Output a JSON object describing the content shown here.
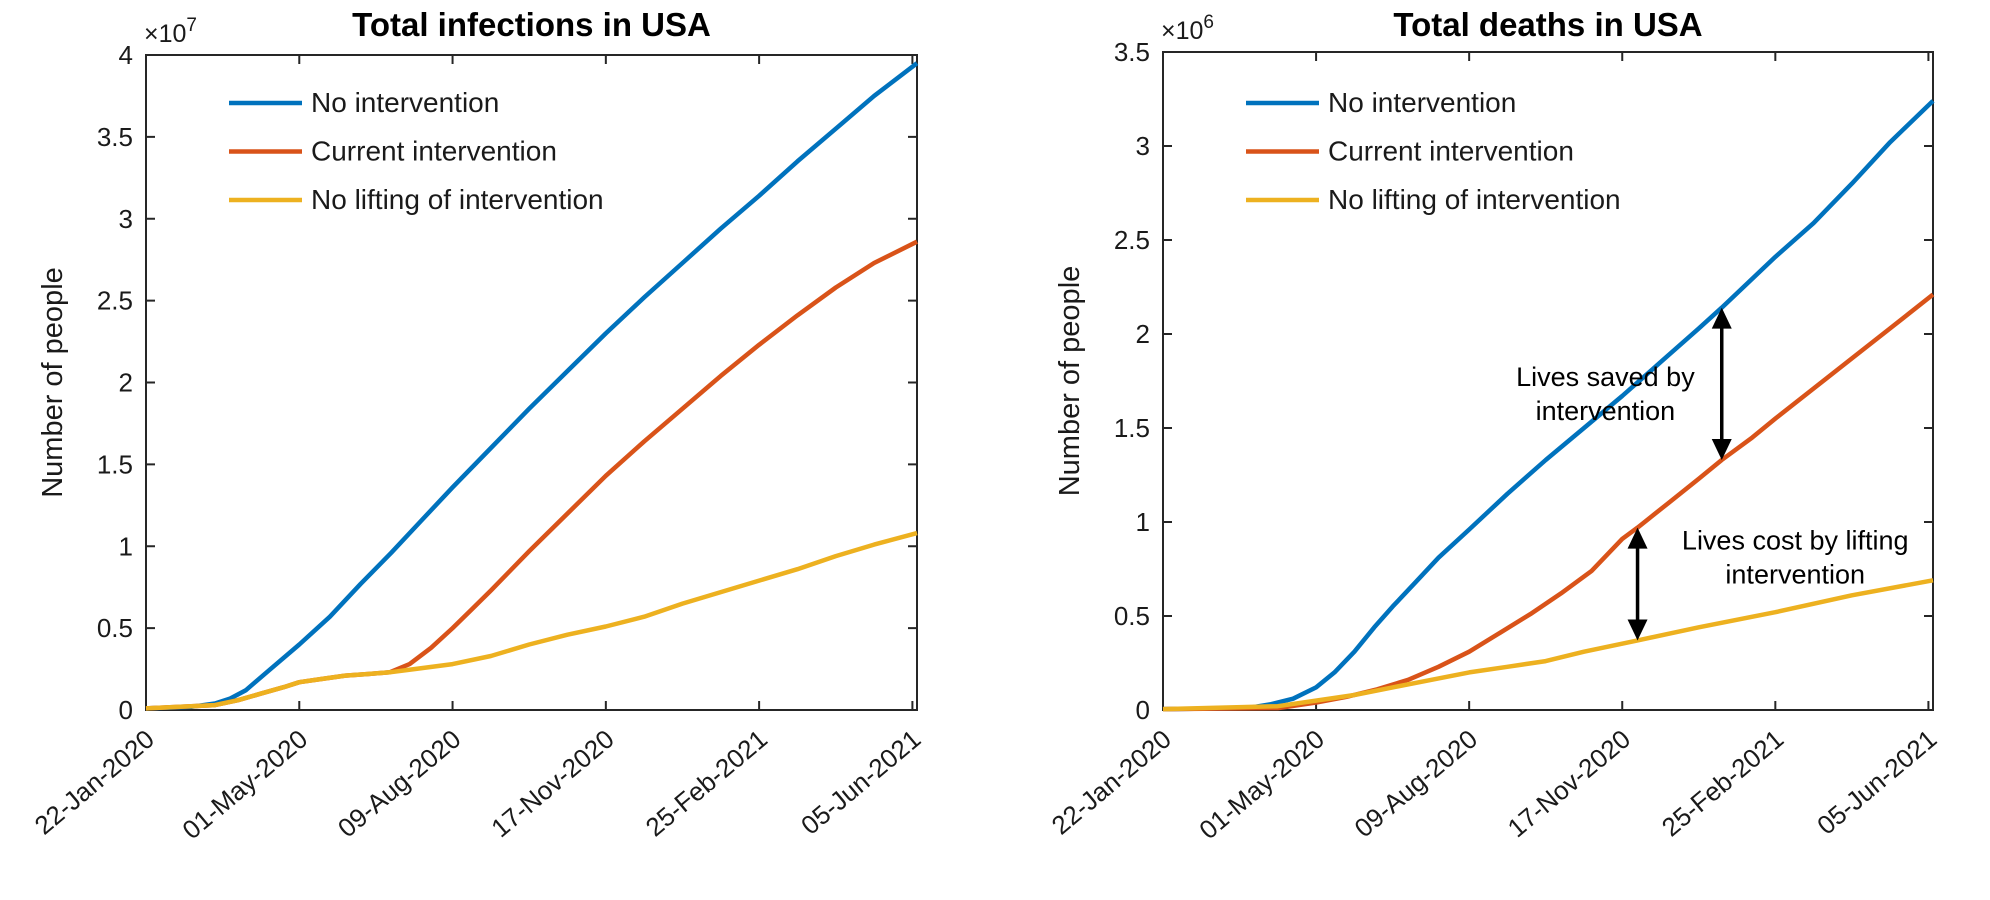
{
  "palette": {
    "series_blue": "#0072BD",
    "series_orange": "#D95319",
    "series_yellow": "#EDB120",
    "axis_color": "#262626",
    "text_color": "#1a1a1a",
    "title_color": "#000000",
    "annotation_color": "#000000",
    "background": "#ffffff"
  },
  "chart_data": [
    {
      "type": "line",
      "title": "Total infections in USA",
      "ylabel": "Number of people",
      "y_exponent": {
        "prefix": "×10",
        "power": "7"
      },
      "y_unit_scale": "1e7",
      "ylim": [
        0,
        4
      ],
      "y_ticks": [
        0,
        0.5,
        1,
        1.5,
        2,
        2.5,
        3,
        3.5,
        4
      ],
      "y_tick_labels": [
        "0",
        "0.5",
        "1",
        "1.5",
        "2",
        "2.5",
        "3",
        "3.5",
        "4"
      ],
      "x_tick_days": [
        0,
        100,
        200,
        300,
        400,
        500
      ],
      "x_tick_labels": [
        "22-Jan-2020",
        "01-May-2020",
        "09-Aug-2020",
        "17-Nov-2020",
        "25-Feb-2021",
        "05-Jun-2021"
      ],
      "x_max_day": 503,
      "grid": false,
      "legend_position": "upper-left-inside",
      "series": [
        {
          "name": "No intervention",
          "color": "#0072BD",
          "points": [
            [
              0,
              0.01
            ],
            [
              30,
              0.02
            ],
            [
              45,
              0.04
            ],
            [
              55,
              0.07
            ],
            [
              65,
              0.12
            ],
            [
              80,
              0.24
            ],
            [
              100,
              0.4
            ],
            [
              120,
              0.57
            ],
            [
              140,
              0.77
            ],
            [
              160,
              0.96
            ],
            [
              180,
              1.16
            ],
            [
              200,
              1.36
            ],
            [
              225,
              1.6
            ],
            [
              250,
              1.84
            ],
            [
              275,
              2.07
            ],
            [
              300,
              2.3
            ],
            [
              325,
              2.52
            ],
            [
              350,
              2.73
            ],
            [
              375,
              2.94
            ],
            [
              400,
              3.14
            ],
            [
              425,
              3.35
            ],
            [
              450,
              3.55
            ],
            [
              475,
              3.75
            ],
            [
              503,
              3.95
            ]
          ]
        },
        {
          "name": "Current intervention",
          "color": "#D95319",
          "points": [
            [
              0,
              0.01
            ],
            [
              45,
              0.03
            ],
            [
              60,
              0.06
            ],
            [
              75,
              0.1
            ],
            [
              90,
              0.14
            ],
            [
              100,
              0.17
            ],
            [
              115,
              0.19
            ],
            [
              130,
              0.21
            ],
            [
              145,
              0.22
            ],
            [
              159,
              0.23
            ],
            [
              172,
              0.28
            ],
            [
              186,
              0.38
            ],
            [
              200,
              0.5
            ],
            [
              212,
              0.61
            ],
            [
              225,
              0.73
            ],
            [
              250,
              0.97
            ],
            [
              275,
              1.2
            ],
            [
              300,
              1.43
            ],
            [
              325,
              1.64
            ],
            [
              350,
              1.84
            ],
            [
              375,
              2.04
            ],
            [
              400,
              2.23
            ],
            [
              425,
              2.41
            ],
            [
              450,
              2.58
            ],
            [
              475,
              2.73
            ],
            [
              503,
              2.86
            ]
          ]
        },
        {
          "name": "No lifting of intervention",
          "color": "#EDB120",
          "points": [
            [
              0,
              0.01
            ],
            [
              45,
              0.03
            ],
            [
              60,
              0.06
            ],
            [
              75,
              0.1
            ],
            [
              90,
              0.14
            ],
            [
              100,
              0.17
            ],
            [
              115,
              0.19
            ],
            [
              130,
              0.21
            ],
            [
              145,
              0.22
            ],
            [
              159,
              0.23
            ],
            [
              175,
              0.25
            ],
            [
              200,
              0.28
            ],
            [
              225,
              0.33
            ],
            [
              250,
              0.4
            ],
            [
              275,
              0.46
            ],
            [
              300,
              0.51
            ],
            [
              325,
              0.57
            ],
            [
              350,
              0.65
            ],
            [
              375,
              0.72
            ],
            [
              400,
              0.79
            ],
            [
              425,
              0.86
            ],
            [
              450,
              0.94
            ],
            [
              475,
              1.01
            ],
            [
              503,
              1.08
            ]
          ]
        }
      ],
      "annotations": []
    },
    {
      "type": "line",
      "title": "Total deaths in USA",
      "ylabel": "Number of people",
      "y_exponent": {
        "prefix": "×10",
        "power": "6"
      },
      "y_unit_scale": "1e6",
      "ylim": [
        0,
        3.5
      ],
      "y_ticks": [
        0,
        0.5,
        1,
        1.5,
        2,
        2.5,
        3,
        3.5
      ],
      "y_tick_labels": [
        "0",
        "0.5",
        "1",
        "1.5",
        "2",
        "2.5",
        "3",
        "3.5"
      ],
      "x_tick_days": [
        0,
        100,
        200,
        300,
        400,
        500
      ],
      "x_tick_labels": [
        "22-Jan-2020",
        "01-May-2020",
        "09-Aug-2020",
        "17-Nov-2020",
        "25-Feb-2021",
        "05-Jun-2021"
      ],
      "x_max_day": 503,
      "grid": false,
      "legend_position": "upper-left-inside",
      "series": [
        {
          "name": "No intervention",
          "color": "#0072BD",
          "points": [
            [
              0,
              0.005
            ],
            [
              55,
              0.01
            ],
            [
              70,
              0.03
            ],
            [
              85,
              0.06
            ],
            [
              100,
              0.12
            ],
            [
              112,
              0.2
            ],
            [
              125,
              0.31
            ],
            [
              138,
              0.44
            ],
            [
              150,
              0.55
            ],
            [
              165,
              0.68
            ],
            [
              180,
              0.81
            ],
            [
              200,
              0.96
            ],
            [
              225,
              1.15
            ],
            [
              250,
              1.33
            ],
            [
              275,
              1.5
            ],
            [
              300,
              1.67
            ],
            [
              325,
              1.85
            ],
            [
              350,
              2.03
            ],
            [
              365,
              2.14
            ],
            [
              400,
              2.41
            ],
            [
              425,
              2.59
            ],
            [
              450,
              2.8
            ],
            [
              475,
              3.02
            ],
            [
              503,
              3.24
            ]
          ]
        },
        {
          "name": "Current intervention",
          "color": "#D95319",
          "points": [
            [
              0,
              0.005
            ],
            [
              75,
              0.01
            ],
            [
              100,
              0.04
            ],
            [
              120,
              0.07
            ],
            [
              140,
              0.11
            ],
            [
              160,
              0.16
            ],
            [
              180,
              0.23
            ],
            [
              200,
              0.31
            ],
            [
              220,
              0.41
            ],
            [
              240,
              0.51
            ],
            [
              260,
              0.62
            ],
            [
              280,
              0.74
            ],
            [
              300,
              0.91
            ],
            [
              310,
              0.97
            ],
            [
              330,
              1.1
            ],
            [
              350,
              1.23
            ],
            [
              365,
              1.33
            ],
            [
              385,
              1.45
            ],
            [
              400,
              1.55
            ],
            [
              425,
              1.71
            ],
            [
              450,
              1.87
            ],
            [
              475,
              2.03
            ],
            [
              503,
              2.21
            ]
          ]
        },
        {
          "name": "No lifting of intervention",
          "color": "#EDB120",
          "points": [
            [
              0,
              0.005
            ],
            [
              75,
              0.02
            ],
            [
              100,
              0.05
            ],
            [
              125,
              0.08
            ],
            [
              150,
              0.12
            ],
            [
              175,
              0.16
            ],
            [
              200,
              0.2
            ],
            [
              225,
              0.23
            ],
            [
              250,
              0.26
            ],
            [
              275,
              0.31
            ],
            [
              310,
              0.37
            ],
            [
              350,
              0.44
            ],
            [
              400,
              0.52
            ],
            [
              450,
              0.61
            ],
            [
              503,
              0.69
            ]
          ]
        }
      ],
      "annotations": [
        {
          "lines": [
            "Lives saved by",
            "intervention"
          ],
          "arrow_day": 365,
          "arrow_from_value": 1.33,
          "arrow_to_value": 2.14,
          "text_day": 289,
          "text_value": 1.68
        },
        {
          "lines": [
            "Lives cost by lifting",
            "intervention"
          ],
          "arrow_day": 310,
          "arrow_from_value": 0.37,
          "arrow_to_value": 0.97,
          "text_day": 413,
          "text_value": 0.81
        }
      ]
    }
  ]
}
